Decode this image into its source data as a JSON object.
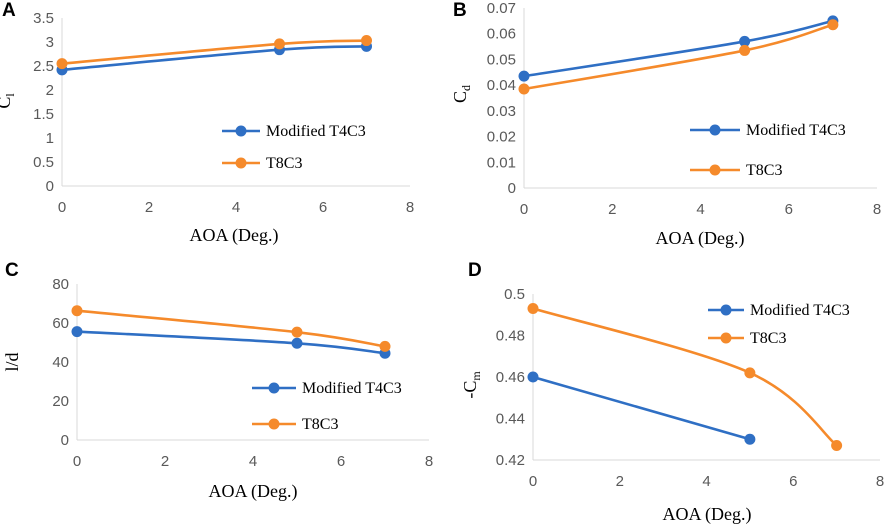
{
  "colors": {
    "series1": "#2f6fc4",
    "series2": "#f58a2b",
    "axis": "#d9d9d9",
    "tick": "#595959"
  },
  "chart_data": [
    {
      "panel": "A",
      "type": "line",
      "xlabel": "AOA (Deg.)",
      "ylabel": {
        "main": "C",
        "sub": "l"
      },
      "xlim": [
        0,
        8
      ],
      "xticks": [
        0,
        2,
        4,
        6,
        8
      ],
      "ylim": [
        0,
        3.5
      ],
      "yticks": [
        "0",
        "0.5",
        "1",
        "1.5",
        "2",
        "2.5",
        "3",
        "3.5"
      ],
      "legend_position": "bottom-right",
      "series": [
        {
          "name": "Modified T4C3",
          "x": [
            0,
            5,
            7
          ],
          "y": [
            2.42,
            2.84,
            2.91
          ]
        },
        {
          "name": "T8C3",
          "x": [
            0,
            5,
            7
          ],
          "y": [
            2.55,
            2.96,
            3.03
          ]
        }
      ]
    },
    {
      "panel": "B",
      "type": "line",
      "xlabel": "AOA (Deg.)",
      "ylabel": {
        "main": "C",
        "sub": "d"
      },
      "xlim": [
        0,
        8
      ],
      "xticks": [
        0,
        2,
        4,
        6,
        8
      ],
      "ylim": [
        0,
        0.07
      ],
      "yticks": [
        "0",
        "0.01",
        "0.02",
        "0.03",
        "0.04",
        "0.05",
        "0.06",
        "0.07"
      ],
      "legend_position": "bottom-right",
      "series": [
        {
          "name": "Modified T4C3",
          "x": [
            0,
            5,
            7
          ],
          "y": [
            0.0435,
            0.057,
            0.065
          ]
        },
        {
          "name": "T8C3",
          "x": [
            0,
            5,
            7
          ],
          "y": [
            0.0385,
            0.0535,
            0.0635
          ]
        }
      ]
    },
    {
      "panel": "C",
      "type": "line",
      "xlabel": "AOA (Deg.)",
      "ylabel": {
        "main": "l/d",
        "sub": ""
      },
      "xlim": [
        0,
        8
      ],
      "xticks": [
        0,
        2,
        4,
        6,
        8
      ],
      "ylim": [
        0,
        80
      ],
      "yticks": [
        "0",
        "20",
        "40",
        "60",
        "80"
      ],
      "legend_position": "bottom-right",
      "series": [
        {
          "name": "Modified T4C3",
          "x": [
            0,
            5,
            7
          ],
          "y": [
            55.6,
            49.6,
            44.5
          ]
        },
        {
          "name": "T8C3",
          "x": [
            0,
            5,
            7
          ],
          "y": [
            66.3,
            55.3,
            48.0
          ]
        }
      ]
    },
    {
      "panel": "D",
      "type": "line",
      "xlabel": "AOA (Deg.)",
      "ylabel": {
        "main": "-C",
        "sub": "m"
      },
      "xlim": [
        0,
        8
      ],
      "xticks": [
        0,
        2,
        4,
        6,
        8
      ],
      "ylim": [
        0.42,
        0.5
      ],
      "yticks": [
        "0.42",
        "0.44",
        "0.46",
        "0.48",
        "0.5"
      ],
      "legend_position": "top-right",
      "series": [
        {
          "name": "Modified T4C3",
          "x": [
            0,
            5
          ],
          "y": [
            0.46,
            0.43
          ]
        },
        {
          "name": "T8C3",
          "x": [
            0,
            5,
            7
          ],
          "y": [
            0.493,
            0.462,
            0.427
          ]
        }
      ]
    }
  ]
}
